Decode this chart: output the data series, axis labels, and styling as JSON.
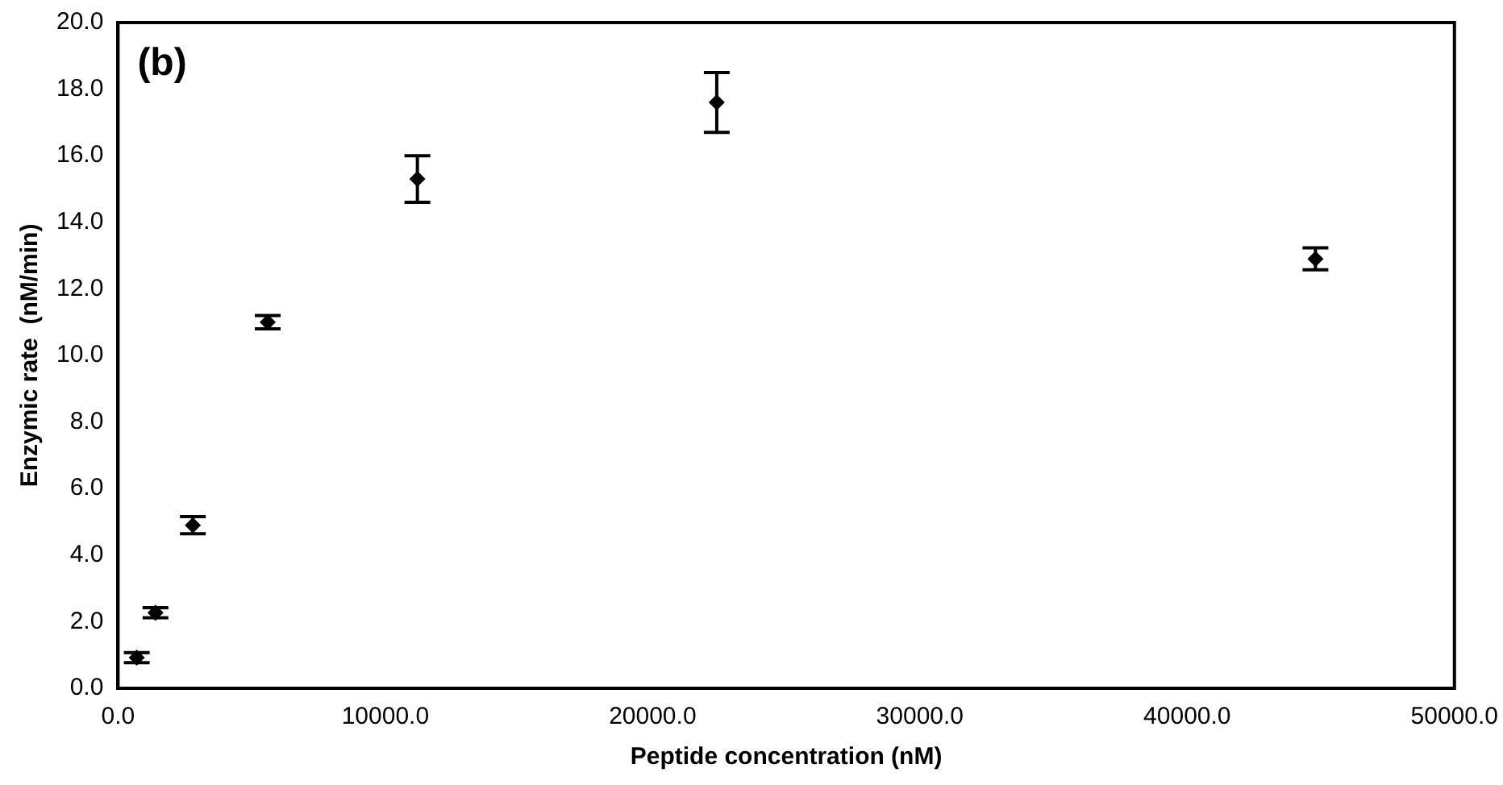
{
  "chart_data": {
    "type": "scatter",
    "xlabel": "Peptide concentration (nM)",
    "ylabel": "Enzymic rate  (nM/min)",
    "annotations": [
      "(b)"
    ],
    "x": [
      700,
      1400,
      2800,
      5600,
      11200,
      22400,
      44800
    ],
    "series": [
      {
        "color": "#000000",
        "values": [
          0.92,
          2.27,
          4.9,
          11.0,
          15.3,
          17.6,
          12.9
        ],
        "errors": [
          0.15,
          0.15,
          0.26,
          0.2,
          0.7,
          0.9,
          0.33
        ]
      }
    ],
    "marker": "diamond",
    "grid": false,
    "legend": false,
    "xlim": [
      0,
      50000
    ],
    "xticks": [
      {
        "value": 0,
        "label": "0.0"
      },
      {
        "value": 10000,
        "label": "10000.0"
      },
      {
        "value": 20000,
        "label": "20000.0"
      },
      {
        "value": 30000,
        "label": "30000.0"
      },
      {
        "value": 40000,
        "label": "40000.0"
      },
      {
        "value": 50000,
        "label": "50000.0"
      }
    ],
    "ylim": [
      0,
      20
    ],
    "yticks": [
      {
        "value": 0,
        "label": "0.0"
      },
      {
        "value": 2,
        "label": "2.0"
      },
      {
        "value": 4,
        "label": "4.0"
      },
      {
        "value": 6,
        "label": "6.0"
      },
      {
        "value": 8,
        "label": "8.0"
      },
      {
        "value": 10,
        "label": "10.0"
      },
      {
        "value": 12,
        "label": "12.0"
      },
      {
        "value": 14,
        "label": "14.0"
      },
      {
        "value": 16,
        "label": "16.0"
      },
      {
        "value": 18,
        "label": "18.0"
      },
      {
        "value": 20,
        "label": "20.0"
      }
    ]
  }
}
